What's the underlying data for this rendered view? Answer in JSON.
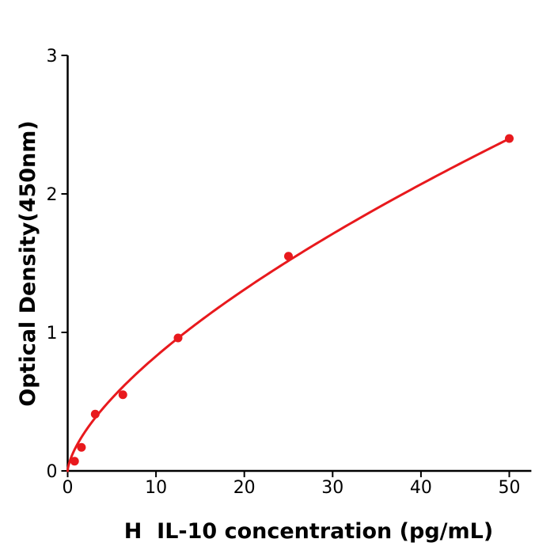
{
  "chart_data": {
    "type": "scatter",
    "title": "",
    "xlabel": "H  IL-10 concentration (pg/mL)",
    "ylabel": "Optical Density(450nm)",
    "x_ticks": [
      0,
      10,
      20,
      30,
      40,
      50
    ],
    "y_ticks": [
      0,
      1,
      2,
      3
    ],
    "xlim": [
      0,
      52.5
    ],
    "ylim": [
      0,
      3
    ],
    "grid": false,
    "legend": null,
    "points": [
      {
        "x": 0.78,
        "y": 0.07
      },
      {
        "x": 1.56,
        "y": 0.17
      },
      {
        "x": 3.12,
        "y": 0.41
      },
      {
        "x": 6.25,
        "y": 0.55
      },
      {
        "x": 12.5,
        "y": 0.96
      },
      {
        "x": 25,
        "y": 1.55
      },
      {
        "x": 50,
        "y": 2.4
      }
    ],
    "curve_fit": {
      "type": "power",
      "equation": "OD = a * x^b",
      "a": 0.1807,
      "b": 0.661,
      "x_start": 0,
      "x_end": 50
    },
    "colors": {
      "series": "#e8191d",
      "axis": "#000000",
      "text": "#000000",
      "background": "#ffffff"
    },
    "marker_radius": 5.5,
    "curve_line_width": 3
  }
}
